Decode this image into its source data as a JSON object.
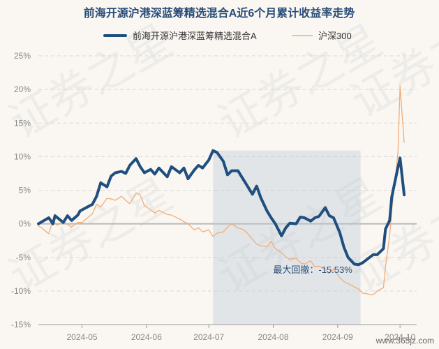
{
  "chart_data": {
    "type": "line",
    "title": "前海开源沪港深蓝筹精选混合A近6个月累计收益率走势",
    "y_unit": "%",
    "ylim": [
      -15,
      25
    ],
    "y_ticks": [
      25,
      20,
      15,
      10,
      5,
      0,
      -5,
      -10,
      -15
    ],
    "y_tick_labels": [
      "25%",
      "20%",
      "15%",
      "10%",
      "5%",
      "0%",
      "-5%",
      "-10%",
      "-15%"
    ],
    "x_range": [
      "2024-04-10",
      "2024-10-09"
    ],
    "x_ticks": [
      "2024-05-01",
      "2024-06-01",
      "2024-07-01",
      "2024-08-01",
      "2024-09-01",
      "2024-10-01"
    ],
    "x_tick_labels": [
      "2024-05",
      "2024-06",
      "2024-07",
      "2024-08",
      "2024-09",
      "2024-10"
    ],
    "grid": "horizontal dashed",
    "legend_position": "top",
    "series": [
      {
        "name": "前海开源沪港深蓝筹精选混合A",
        "color": "#1f4e7f",
        "points": [
          [
            "2024-04-10",
            0.0
          ],
          [
            "2024-04-15",
            0.9
          ],
          [
            "2024-04-17",
            0.0
          ],
          [
            "2024-04-18",
            1.2
          ],
          [
            "2024-04-22",
            0.2
          ],
          [
            "2024-04-24",
            1.2
          ],
          [
            "2024-04-26",
            0.5
          ],
          [
            "2024-04-29",
            1.3
          ],
          [
            "2024-04-30",
            1.9
          ],
          [
            "2024-05-06",
            2.9
          ],
          [
            "2024-05-08",
            4.1
          ],
          [
            "2024-05-10",
            6.1
          ],
          [
            "2024-05-13",
            5.5
          ],
          [
            "2024-05-15",
            7.1
          ],
          [
            "2024-05-17",
            7.6
          ],
          [
            "2024-05-20",
            7.8
          ],
          [
            "2024-05-22",
            7.5
          ],
          [
            "2024-05-24",
            8.7
          ],
          [
            "2024-05-27",
            9.7
          ],
          [
            "2024-05-29",
            8.5
          ],
          [
            "2024-05-31",
            7.6
          ],
          [
            "2024-06-03",
            8.1
          ],
          [
            "2024-06-05",
            7.4
          ],
          [
            "2024-06-07",
            8.3
          ],
          [
            "2024-06-11",
            7.0
          ],
          [
            "2024-06-13",
            8.5
          ],
          [
            "2024-06-17",
            7.6
          ],
          [
            "2024-06-19",
            8.3
          ],
          [
            "2024-06-21",
            6.7
          ],
          [
            "2024-06-24",
            8.0
          ],
          [
            "2024-06-26",
            8.7
          ],
          [
            "2024-06-28",
            8.3
          ],
          [
            "2024-07-01",
            9.5
          ],
          [
            "2024-07-03",
            10.9
          ],
          [
            "2024-07-05",
            10.6
          ],
          [
            "2024-07-08",
            9.3
          ],
          [
            "2024-07-10",
            7.3
          ],
          [
            "2024-07-12",
            7.9
          ],
          [
            "2024-07-15",
            7.9
          ],
          [
            "2024-07-17",
            6.9
          ],
          [
            "2024-07-19",
            5.9
          ],
          [
            "2024-07-22",
            4.4
          ],
          [
            "2024-07-24",
            5.6
          ],
          [
            "2024-07-26",
            3.9
          ],
          [
            "2024-07-29",
            1.9
          ],
          [
            "2024-07-31",
            0.9
          ],
          [
            "2024-08-02",
            0.0
          ],
          [
            "2024-08-05",
            -1.8
          ],
          [
            "2024-08-07",
            -0.6
          ],
          [
            "2024-08-09",
            0.1
          ],
          [
            "2024-08-12",
            0.0
          ],
          [
            "2024-08-14",
            1.0
          ],
          [
            "2024-08-16",
            0.9
          ],
          [
            "2024-08-19",
            0.4
          ],
          [
            "2024-08-21",
            0.9
          ],
          [
            "2024-08-23",
            1.1
          ],
          [
            "2024-08-26",
            2.4
          ],
          [
            "2024-08-28",
            1.2
          ],
          [
            "2024-08-30",
            0.9
          ],
          [
            "2024-09-02",
            -1.3
          ],
          [
            "2024-09-04",
            -3.5
          ],
          [
            "2024-09-06",
            -5.0
          ],
          [
            "2024-09-09",
            -6.0
          ],
          [
            "2024-09-11",
            -6.1
          ],
          [
            "2024-09-13",
            -5.8
          ],
          [
            "2024-09-18",
            -4.6
          ],
          [
            "2024-09-20",
            -4.6
          ],
          [
            "2024-09-23",
            -3.7
          ],
          [
            "2024-09-24",
            -0.8
          ],
          [
            "2024-09-26",
            0.5
          ],
          [
            "2024-09-27",
            4.0
          ],
          [
            "2024-09-30",
            8.4
          ],
          [
            "2024-10-01",
            9.8
          ],
          [
            "2024-10-03",
            4.3
          ]
        ]
      },
      {
        "name": "沪深300",
        "color": "#f0ad7a",
        "points": [
          [
            "2024-04-10",
            -0.3
          ],
          [
            "2024-04-12",
            -0.7
          ],
          [
            "2024-04-15",
            -1.5
          ],
          [
            "2024-04-17",
            0.5
          ],
          [
            "2024-04-19",
            -0.2
          ],
          [
            "2024-04-22",
            0.3
          ],
          [
            "2024-04-24",
            -0.1
          ],
          [
            "2024-04-26",
            -0.5
          ],
          [
            "2024-04-29",
            0.2
          ],
          [
            "2024-05-01",
            0.2
          ],
          [
            "2024-05-06",
            1.5
          ],
          [
            "2024-05-08",
            2.9
          ],
          [
            "2024-05-10",
            2.5
          ],
          [
            "2024-05-13",
            3.8
          ],
          [
            "2024-05-15",
            3.7
          ],
          [
            "2024-05-17",
            3.5
          ],
          [
            "2024-05-20",
            4.1
          ],
          [
            "2024-05-22",
            3.5
          ],
          [
            "2024-05-24",
            3.0
          ],
          [
            "2024-05-27",
            4.6
          ],
          [
            "2024-05-29",
            4.3
          ],
          [
            "2024-05-31",
            2.7
          ],
          [
            "2024-06-03",
            2.1
          ],
          [
            "2024-06-05",
            1.6
          ],
          [
            "2024-06-07",
            2.0
          ],
          [
            "2024-06-11",
            1.4
          ],
          [
            "2024-06-13",
            1.3
          ],
          [
            "2024-06-17",
            0.7
          ],
          [
            "2024-06-19",
            0.3
          ],
          [
            "2024-06-21",
            0.0
          ],
          [
            "2024-06-24",
            -0.9
          ],
          [
            "2024-06-26",
            -0.6
          ],
          [
            "2024-06-28",
            -1.2
          ],
          [
            "2024-07-01",
            -0.9
          ],
          [
            "2024-07-03",
            -1.9
          ],
          [
            "2024-07-05",
            -1.4
          ],
          [
            "2024-07-08",
            -1.2
          ],
          [
            "2024-07-10",
            -0.5
          ],
          [
            "2024-07-12",
            0.0
          ],
          [
            "2024-07-15",
            -0.6
          ],
          [
            "2024-07-17",
            -0.8
          ],
          [
            "2024-07-19",
            -1.2
          ],
          [
            "2024-07-22",
            -2.3
          ],
          [
            "2024-07-24",
            -3.0
          ],
          [
            "2024-07-26",
            -3.3
          ],
          [
            "2024-07-29",
            -3.4
          ],
          [
            "2024-07-31",
            -2.6
          ],
          [
            "2024-08-02",
            -3.7
          ],
          [
            "2024-08-05",
            -4.3
          ],
          [
            "2024-08-07",
            -4.9
          ],
          [
            "2024-08-09",
            -5.3
          ],
          [
            "2024-08-12",
            -5.1
          ],
          [
            "2024-08-14",
            -5.8
          ],
          [
            "2024-08-16",
            -6.0
          ],
          [
            "2024-08-19",
            -5.5
          ],
          [
            "2024-08-21",
            -6.4
          ],
          [
            "2024-08-23",
            -6.3
          ],
          [
            "2024-08-26",
            -6.8
          ],
          [
            "2024-08-28",
            -7.4
          ],
          [
            "2024-08-30",
            -6.7
          ],
          [
            "2024-09-02",
            -8.0
          ],
          [
            "2024-09-04",
            -8.6
          ],
          [
            "2024-09-06",
            -8.9
          ],
          [
            "2024-09-09",
            -9.4
          ],
          [
            "2024-09-11",
            -9.7
          ],
          [
            "2024-09-13",
            -10.3
          ],
          [
            "2024-09-18",
            -10.6
          ],
          [
            "2024-09-20",
            -10.0
          ],
          [
            "2024-09-23",
            -9.5
          ],
          [
            "2024-09-24",
            -6.4
          ],
          [
            "2024-09-26",
            -1.8
          ],
          [
            "2024-09-27",
            2.1
          ],
          [
            "2024-09-30",
            10.6
          ],
          [
            "2024-10-01",
            20.5
          ],
          [
            "2024-10-03",
            12.1
          ]
        ]
      }
    ],
    "annotations": [
      {
        "text": "最大回撤：-15.53%",
        "anchor_date": "2024-08-20",
        "anchor_value": -7.3
      }
    ],
    "drawdown_shade": {
      "from": "2024-07-03",
      "to": "2024-09-12"
    }
  },
  "watermark": "证券之星",
  "footer": "www.365jz.com"
}
